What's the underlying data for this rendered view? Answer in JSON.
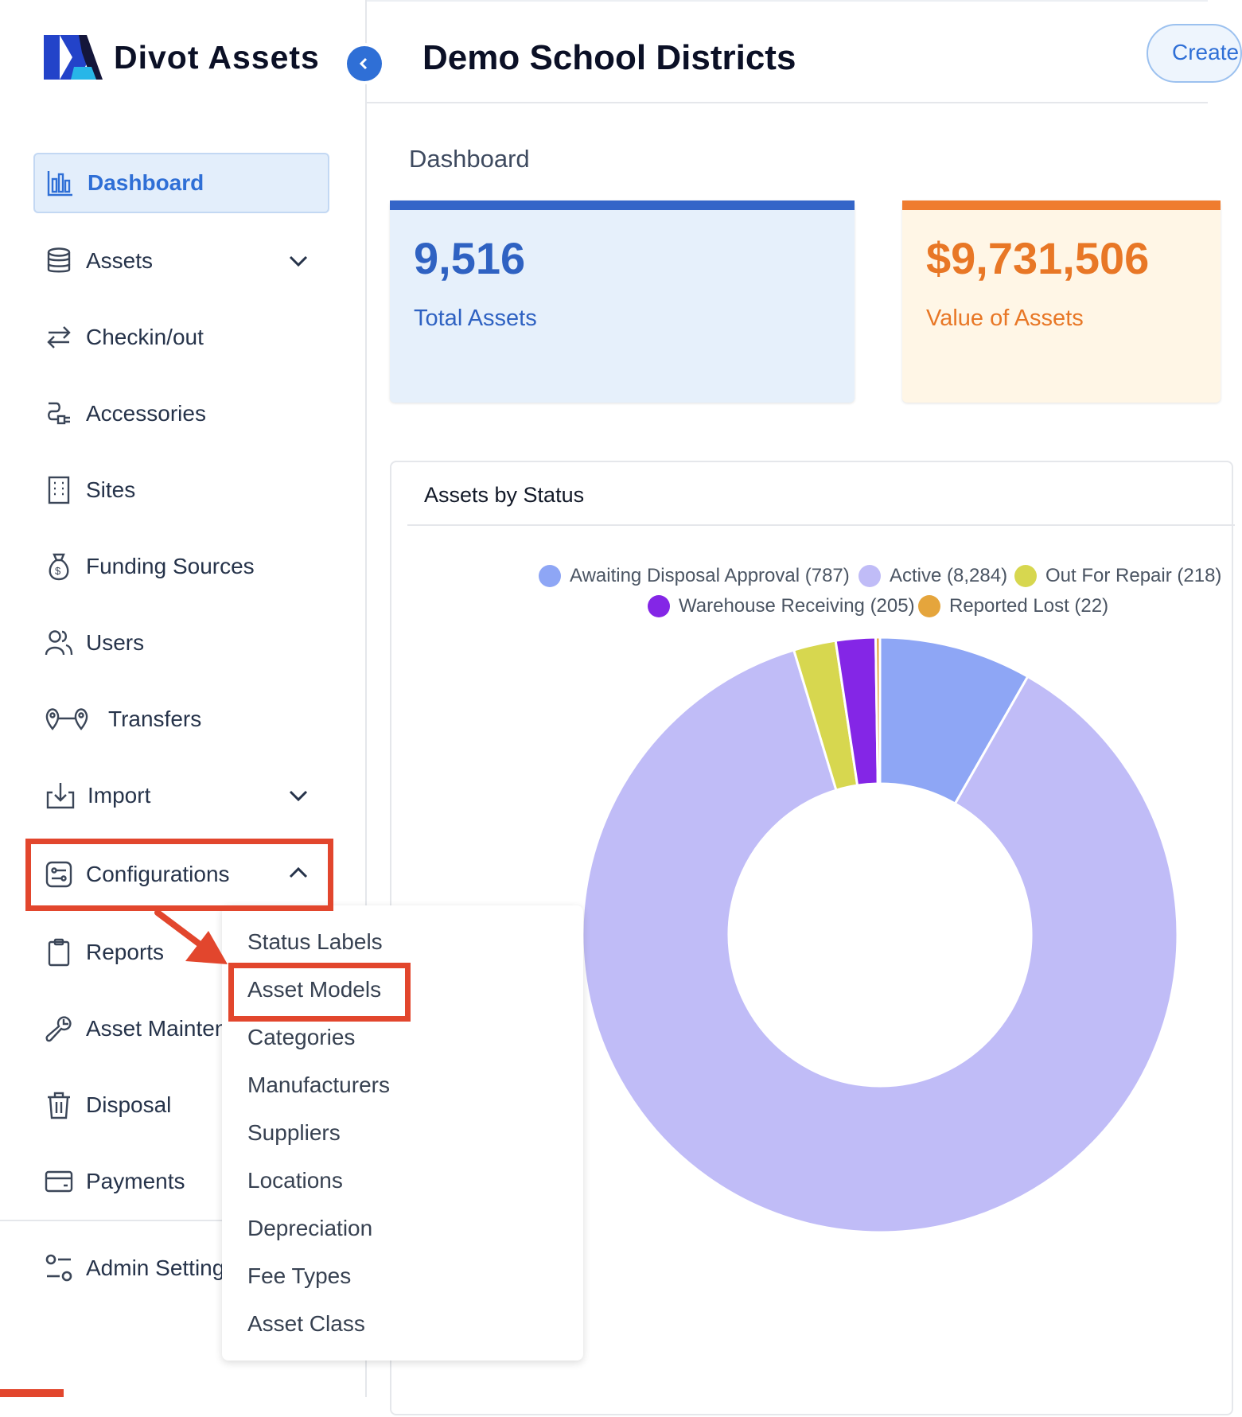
{
  "app": {
    "name": "Divot Assets"
  },
  "header": {
    "org_title": "Demo School Districts",
    "create_label": "Create"
  },
  "sidebar": {
    "items": [
      {
        "label": "Dashboard",
        "icon": "bar-chart-icon",
        "active": true
      },
      {
        "label": "Assets",
        "icon": "database-icon",
        "expandable": true
      },
      {
        "label": "Checkin/out",
        "icon": "arrows-swap-icon"
      },
      {
        "label": "Accessories",
        "icon": "plug-icon"
      },
      {
        "label": "Sites",
        "icon": "building-icon"
      },
      {
        "label": "Funding Sources",
        "icon": "money-bag-icon"
      },
      {
        "label": "Users",
        "icon": "users-icon"
      },
      {
        "label": "Transfers",
        "icon": "route-pins-icon"
      },
      {
        "label": "Import",
        "icon": "import-icon",
        "expandable": true
      },
      {
        "label": "Configurations",
        "icon": "sliders-icon",
        "expanded": true
      },
      {
        "label": "Reports",
        "icon": "clipboard-icon"
      },
      {
        "label": "Asset Maintenance",
        "icon": "wrench-icon"
      },
      {
        "label": "Disposal",
        "icon": "trash-icon"
      },
      {
        "label": "Payments",
        "icon": "credit-card-icon"
      },
      {
        "label": "Admin Settings",
        "icon": "settings-toggle-icon"
      }
    ]
  },
  "submenu": {
    "items": [
      "Status Labels",
      "Asset Models",
      "Categories",
      "Manufacturers",
      "Suppliers",
      "Locations",
      "Depreciation",
      "Fee Types",
      "Asset Class"
    ]
  },
  "main": {
    "page_title": "Dashboard",
    "cards": [
      {
        "value": "9,516",
        "label": "Total Assets",
        "color": "#2f62c2"
      },
      {
        "value": "$9,731,506",
        "label": "Value of Assets",
        "color": "#e87726"
      }
    ]
  },
  "chart_data": {
    "type": "pie",
    "title": "Assets by Status",
    "legend_position": "top",
    "donut": true,
    "series": [
      {
        "name": "Awaiting Disposal Approval",
        "value": 787,
        "legend": "Awaiting Disposal Approval (787)",
        "color": "#8ea6f5"
      },
      {
        "name": "Active",
        "value": 8284,
        "legend": "Active (8,284)",
        "color": "#c0bcf7"
      },
      {
        "name": "Out For Repair",
        "value": 218,
        "legend": "Out For Repair (218)",
        "color": "#d7d74f"
      },
      {
        "name": "Warehouse Receiving",
        "value": 205,
        "legend": "Warehouse Receiving (205)",
        "color": "#8426e6"
      },
      {
        "name": "Reported Lost",
        "value": 22,
        "legend": "Reported Lost (22)",
        "color": "#e5a53c"
      }
    ]
  },
  "colors": {
    "accent": "#2f6fd6",
    "annotation": "#e2462d"
  }
}
